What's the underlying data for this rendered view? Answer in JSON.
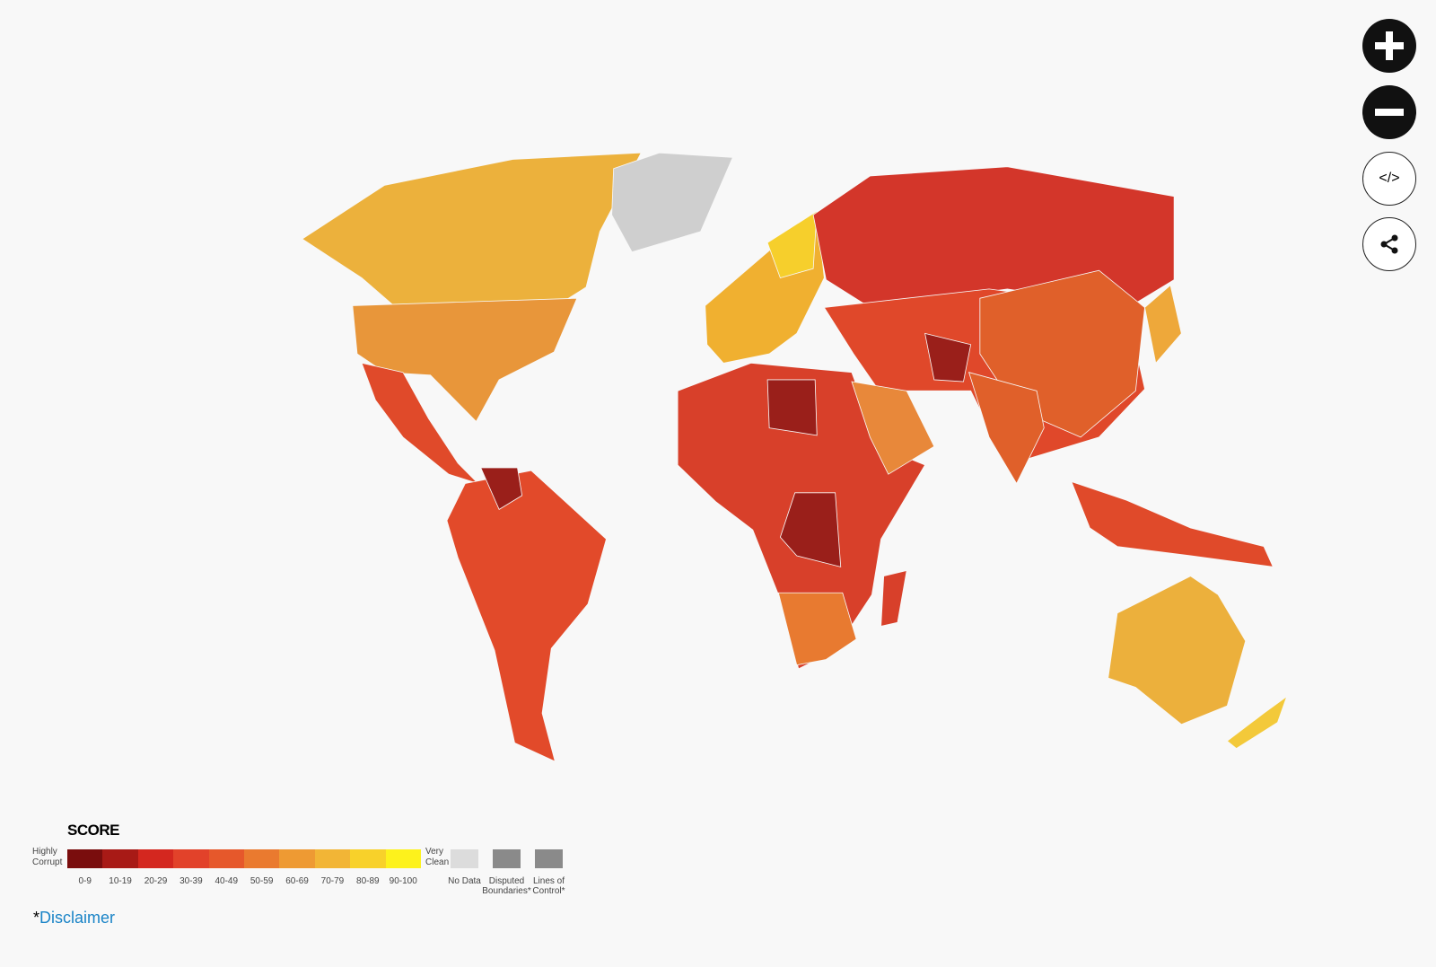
{
  "controls": {
    "embed_icon": "</>"
  },
  "legend": {
    "title": "SCORE",
    "low_label": "Highly Corrupt",
    "high_label": "Very Clean",
    "bins": [
      {
        "label": "0-9",
        "color": "#7a0d0d"
      },
      {
        "label": "10-19",
        "color": "#a81a16"
      },
      {
        "label": "20-29",
        "color": "#d4271f"
      },
      {
        "label": "30-39",
        "color": "#e2422a"
      },
      {
        "label": "40-49",
        "color": "#e6582b"
      },
      {
        "label": "50-59",
        "color": "#ea7a2f"
      },
      {
        "label": "60-69",
        "color": "#ee9a33"
      },
      {
        "label": "70-79",
        "color": "#f2b536"
      },
      {
        "label": "80-89",
        "color": "#f8d12a"
      },
      {
        "label": "90-100",
        "color": "#fdf21c"
      }
    ],
    "extras": [
      {
        "label": "No Data",
        "color": "#dcdcdc"
      },
      {
        "label": "Disputed Boundaries*",
        "color": "#8a8a8a"
      },
      {
        "label": "Lines of Control*",
        "color": "#8a8a8a"
      }
    ]
  },
  "disclaimer": {
    "marker": "*",
    "link": "Disclaimer"
  }
}
